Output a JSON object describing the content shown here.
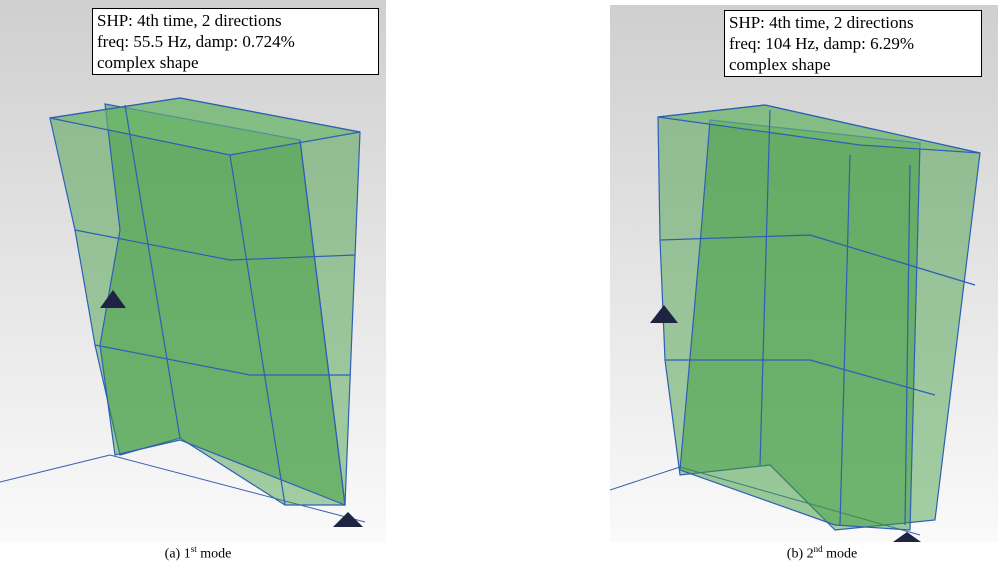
{
  "panels": [
    {
      "info": [
        "SHP: 4th time, 2 directions",
        "freq: 55.5 Hz, damp: 0.724%",
        "complex shape"
      ],
      "caption": {
        "prefix": "(a) 1",
        "sup": "st",
        "suffix": " mode"
      }
    },
    {
      "info": [
        "SHP: 4th time, 2 directions",
        "freq: 104 Hz, damp: 6.29%",
        "complex shape"
      ],
      "caption": {
        "prefix": "(b) 2",
        "sup": "nd",
        "suffix": " mode"
      }
    }
  ]
}
